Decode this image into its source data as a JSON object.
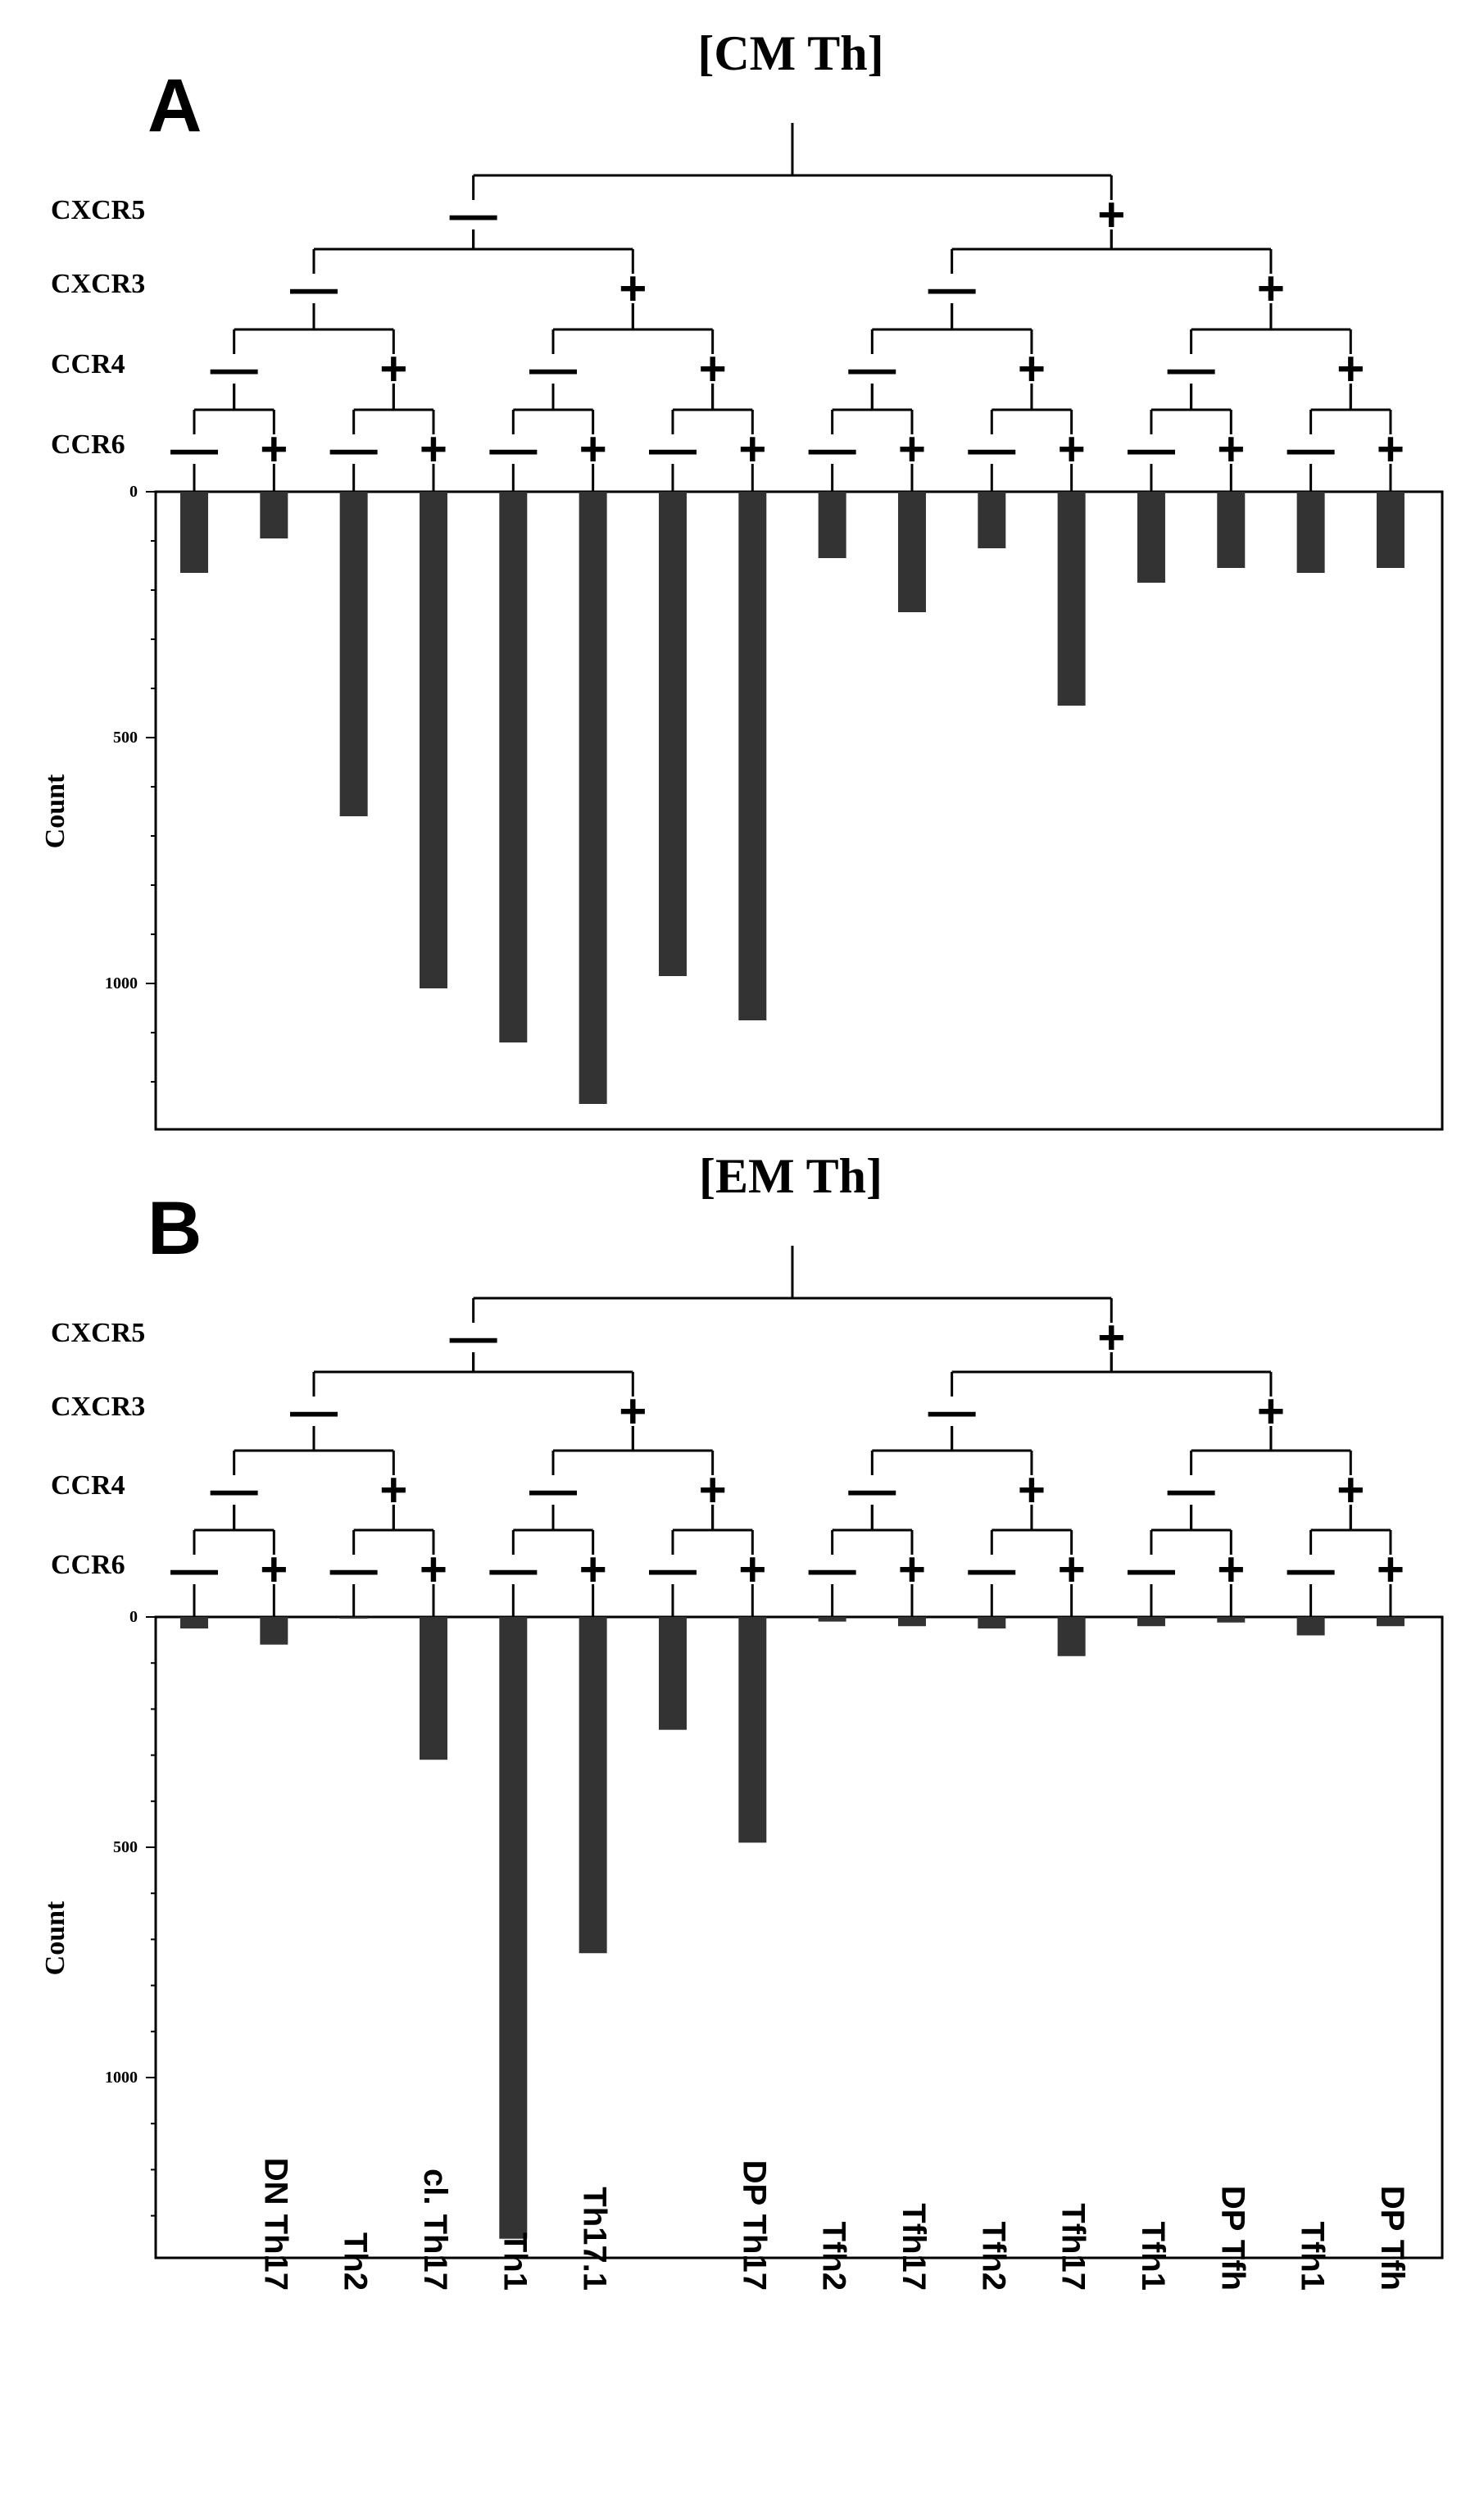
{
  "chart_data": [
    {
      "type": "bar",
      "panel_letter": "A",
      "title": "[CM Th]",
      "ylabel": "Count",
      "ylim": [
        0,
        1300
      ],
      "yticks": [
        0,
        500,
        1000
      ],
      "orientation": "downward",
      "marker_labels": [
        "CXCR5",
        "CXCR3",
        "CCR4",
        "CCR6"
      ],
      "minus_sign": "—",
      "plus_sign": "+",
      "values": [
        165,
        95,
        660,
        1010,
        1120,
        1245,
        985,
        1075,
        135,
        245,
        115,
        435,
        185,
        155,
        165,
        155
      ]
    },
    {
      "type": "bar",
      "panel_letter": "B",
      "title": "[EM Th]",
      "ylabel": "Count",
      "ylim": [
        0,
        1400
      ],
      "yticks": [
        0,
        500,
        1000
      ],
      "orientation": "downward",
      "marker_labels": [
        "CXCR5",
        "CXCR3",
        "CCR4",
        "CCR6"
      ],
      "minus_sign": "—",
      "plus_sign": "+",
      "values": [
        25,
        60,
        2,
        310,
        1350,
        730,
        245,
        490,
        10,
        20,
        25,
        85,
        20,
        12,
        40,
        20
      ]
    }
  ],
  "category_labels": [
    "",
    "DN Th17",
    "Th2",
    "cl. Th17",
    "Th1",
    "Th17.1",
    "",
    "DP Th17",
    "Tfh2",
    "Tfh17",
    "Tfh2",
    "Tfh17",
    "Tfh1",
    "DP Tfh",
    "Tfh1",
    "DP Tfh"
  ],
  "colors": {
    "bar": "#333333",
    "line": "#000000",
    "background": "#ffffff"
  }
}
